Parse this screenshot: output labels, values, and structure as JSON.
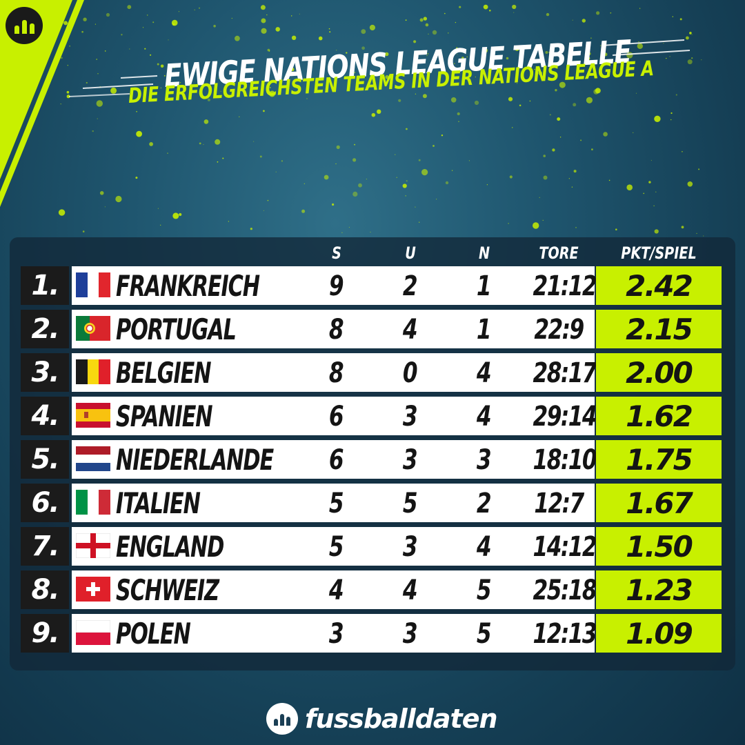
{
  "header": {
    "title": "EWIGE NATIONS LEAGUE TABELLE",
    "subtitle": "DIE ERFOLGREICHSTEN TEAMS IN DER NATIONS LEAGUE A"
  },
  "table": {
    "columns": {
      "wins": "S",
      "draws": "U",
      "losses": "N",
      "goals": "TORE",
      "ppg": "PKT/SPIEL"
    },
    "rows": [
      {
        "rank": "1.",
        "team": "FRANKREICH",
        "flag": "france-flag-icon",
        "wins": "9",
        "draws": "2",
        "losses": "1",
        "goals": "21:12",
        "ppg": "2.42"
      },
      {
        "rank": "2.",
        "team": "PORTUGAL",
        "flag": "portugal-flag-icon",
        "wins": "8",
        "draws": "4",
        "losses": "1",
        "goals": "22:9",
        "ppg": "2.15"
      },
      {
        "rank": "3.",
        "team": "BELGIEN",
        "flag": "belgium-flag-icon",
        "wins": "8",
        "draws": "0",
        "losses": "4",
        "goals": "28:17",
        "ppg": "2.00"
      },
      {
        "rank": "4.",
        "team": "SPANIEN",
        "flag": "spain-flag-icon",
        "wins": "6",
        "draws": "3",
        "losses": "4",
        "goals": "29:14",
        "ppg": "1.62"
      },
      {
        "rank": "5.",
        "team": "NIEDERLANDE",
        "flag": "netherlands-flag-icon",
        "wins": "6",
        "draws": "3",
        "losses": "3",
        "goals": "18:10",
        "ppg": "1.75"
      },
      {
        "rank": "6.",
        "team": "ITALIEN",
        "flag": "italy-flag-icon",
        "wins": "5",
        "draws": "5",
        "losses": "2",
        "goals": "12:7",
        "ppg": "1.67"
      },
      {
        "rank": "7.",
        "team": "ENGLAND",
        "flag": "england-flag-icon",
        "wins": "5",
        "draws": "3",
        "losses": "4",
        "goals": "14:12",
        "ppg": "1.50"
      },
      {
        "rank": "8.",
        "team": "SCHWEIZ",
        "flag": "switzerland-flag-icon",
        "wins": "4",
        "draws": "4",
        "losses": "5",
        "goals": "25:18",
        "ppg": "1.23"
      },
      {
        "rank": "9.",
        "team": "POLEN",
        "flag": "poland-flag-icon",
        "wins": "3",
        "draws": "3",
        "losses": "5",
        "goals": "12:13",
        "ppg": "1.09"
      }
    ]
  },
  "brand": {
    "name": "fussballdaten",
    "icon": "bar-chart-logo-icon"
  },
  "colors": {
    "accent": "#c8f000",
    "background": "#1f566f",
    "rank_cell": "#1b1b1b",
    "row": "#ffffff"
  }
}
